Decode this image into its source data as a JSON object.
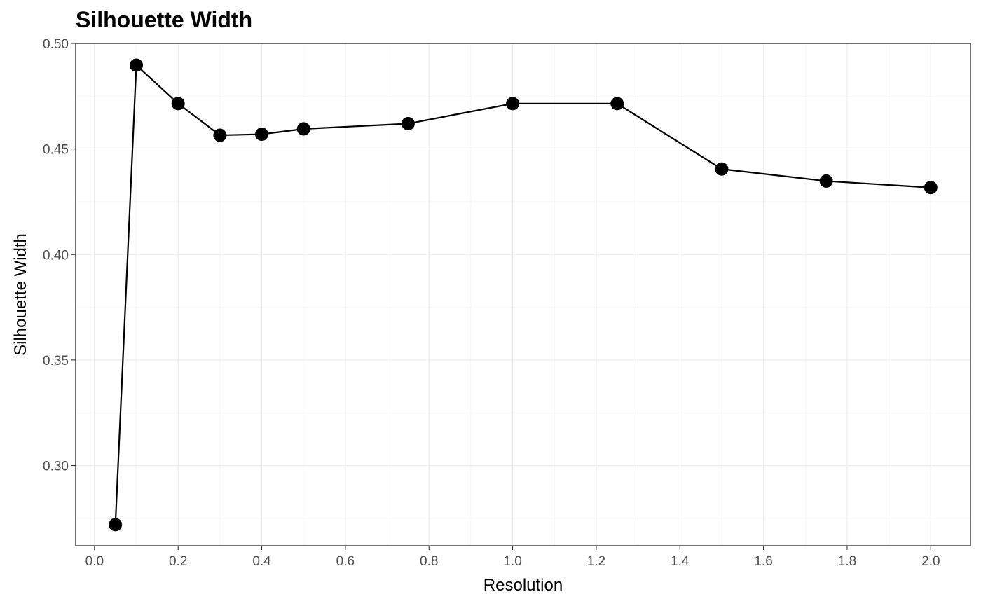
{
  "chart_data": {
    "type": "line",
    "title": "Silhouette Width",
    "xlabel": "Resolution",
    "ylabel": "Silhouette Width",
    "xlim": [
      -0.045,
      2.095
    ],
    "ylim": [
      0.262,
      0.5
    ],
    "x_ticks": [
      0.0,
      0.2,
      0.4,
      0.6,
      0.8,
      1.0,
      1.2,
      1.4,
      1.6,
      1.8,
      2.0
    ],
    "x_tick_labels": [
      "0.0",
      "0.2",
      "0.4",
      "0.6",
      "0.8",
      "1.0",
      "1.2",
      "1.4",
      "1.6",
      "1.8",
      "2.0"
    ],
    "y_ticks": [
      0.3,
      0.35,
      0.4,
      0.45,
      0.5
    ],
    "y_tick_labels": [
      "0.30",
      "0.35",
      "0.40",
      "0.45",
      "0.50"
    ],
    "grid": true,
    "series": [
      {
        "x": [
          0.05,
          0.1,
          0.2,
          0.3,
          0.4,
          0.5,
          0.75,
          1.0,
          1.25,
          1.5,
          1.75,
          2.0
        ],
        "values": [
          0.272,
          0.4897,
          0.4715,
          0.4565,
          0.457,
          0.4595,
          0.462,
          0.4715,
          0.4715,
          0.4405,
          0.4348,
          0.4317
        ],
        "color": "#000000"
      }
    ]
  }
}
